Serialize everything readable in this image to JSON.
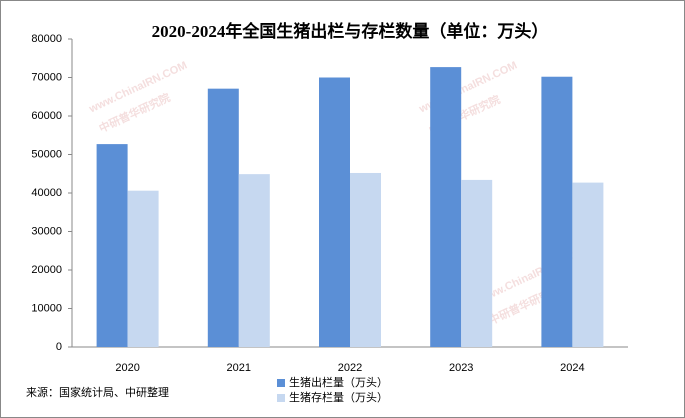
{
  "chart_data": {
    "type": "bar",
    "title": "2020-2024年全国生猪出栏与存栏数量（单位：万头）",
    "categories": [
      "2020",
      "2021",
      "2022",
      "2023",
      "2024"
    ],
    "series": [
      {
        "name": "生猪出栏量（万头）",
        "color": "#5b8fd6",
        "values": [
          52700,
          67100,
          70000,
          72700,
          70200
        ]
      },
      {
        "name": "生猪存栏量（万头）",
        "color": "#c6d8f0",
        "values": [
          40600,
          44900,
          45200,
          43400,
          42700
        ]
      }
    ],
    "ylim": [
      0,
      80000
    ],
    "yticks": [
      0,
      10000,
      20000,
      30000,
      40000,
      50000,
      60000,
      70000,
      80000
    ],
    "grid": false,
    "legend": "bottom",
    "source": "来源：国家统计局、中研整理",
    "watermark": {
      "site": "www.ChinaIRN.COM",
      "name": "中研普华研究院"
    }
  }
}
